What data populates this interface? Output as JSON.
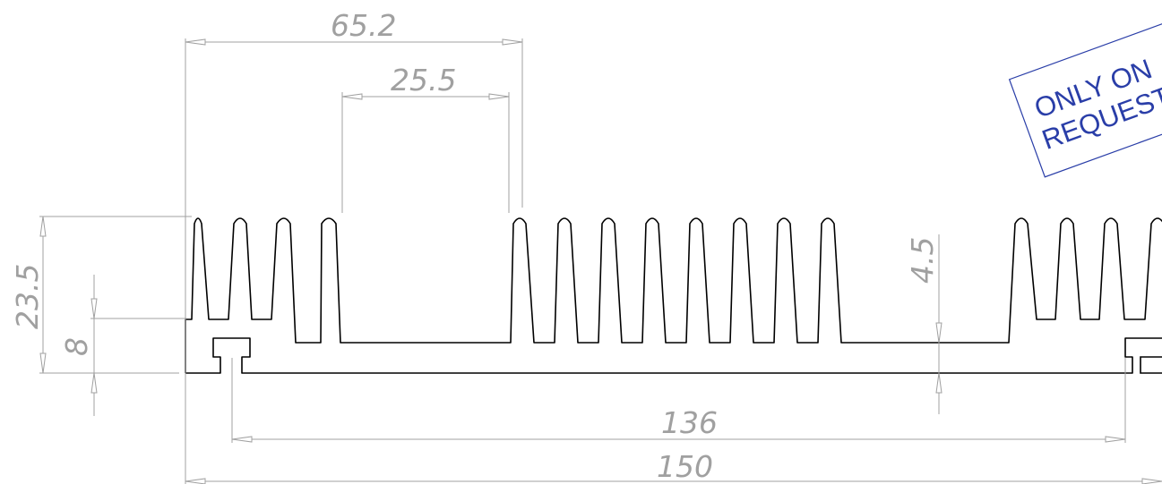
{
  "drawing": {
    "dimensions": {
      "overall_width": "150",
      "slot_pitch_width": "136",
      "left_group_width": "65.2",
      "gap_width": "25.5",
      "total_height": "23.5",
      "base_height": "8",
      "base_thickness": "4.5"
    },
    "stamp": {
      "line1": "ONLY ON",
      "line2": "REQUEST"
    },
    "colors": {
      "profile": "#000000",
      "dimension": "#a0a0a0",
      "stamp": "#2a3ea8"
    }
  }
}
